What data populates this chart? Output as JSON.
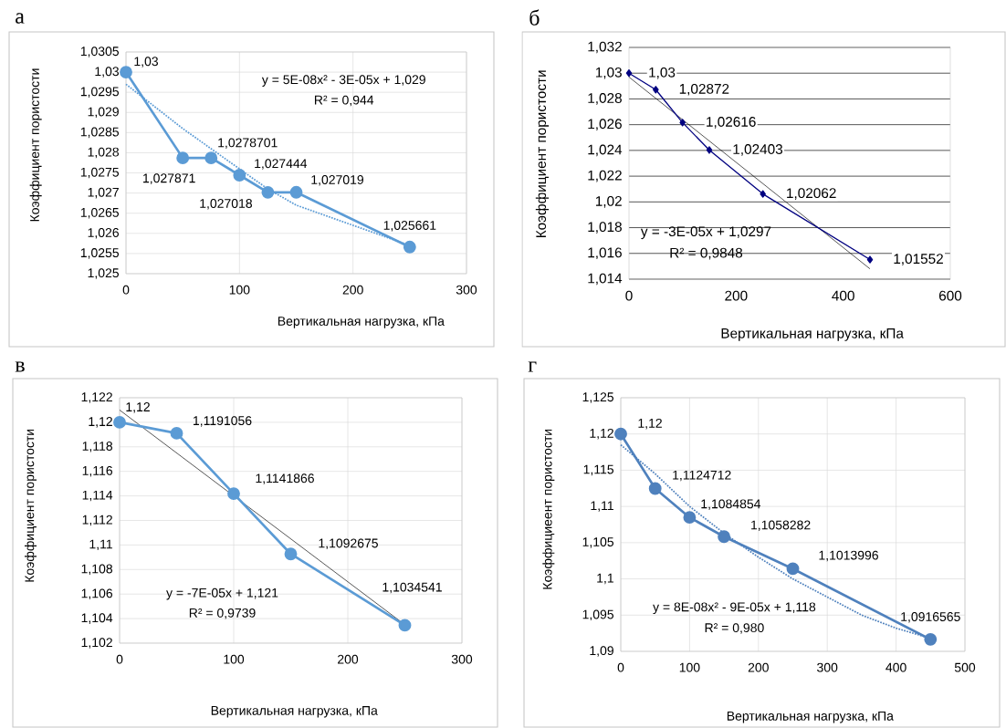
{
  "chart_data": [
    {
      "type": "line",
      "title": "а",
      "xlabel": "Вертикальная нагрузка, кПа",
      "ylabel": "Коэффициент пористости",
      "grid": true,
      "xlim": [
        0,
        300
      ],
      "xticks": [
        0,
        100,
        200,
        300
      ],
      "ylim": [
        1.025,
        1.0305
      ],
      "yticks": [
        {
          "value": 1.025,
          "label": "1,025"
        },
        {
          "value": 1.0255,
          "label": "1,0255"
        },
        {
          "value": 1.026,
          "label": "1,026"
        },
        {
          "value": 1.0265,
          "label": "1,0265"
        },
        {
          "value": 1.027,
          "label": "1,027"
        },
        {
          "value": 1.0275,
          "label": "1,0275"
        },
        {
          "value": 1.028,
          "label": "1,028"
        },
        {
          "value": 1.0285,
          "label": "1,0285"
        },
        {
          "value": 1.029,
          "label": "1,029"
        },
        {
          "value": 1.0295,
          "label": "1,0295"
        },
        {
          "value": 1.03,
          "label": "1,03"
        },
        {
          "value": 1.0305,
          "label": "1,0305"
        }
      ],
      "annotations": [
        "y = 5E-08x² - 3E-05x + 1,029",
        "R² = 0,944"
      ],
      "series": [
        {
          "color": "#5b9bd5",
          "marker": "none",
          "line_style": "dotted",
          "x": [
            0,
            50,
            100,
            125,
            150,
            200,
            250
          ],
          "values": [
            1.0297,
            1.0286,
            1.0276,
            1.0271,
            1.0267,
            1.0262,
            1.0257
          ]
        },
        {
          "color": "#5b9bd5",
          "marker": "circle",
          "line_style": "solid",
          "x": [
            0,
            50,
            75,
            100,
            125,
            150,
            250
          ],
          "values": [
            1.03,
            1.027871,
            1.0278701,
            1.027444,
            1.027018,
            1.027019,
            1.025661
          ],
          "value_labels": [
            "1,03",
            "1,027871",
            "1,0278701",
            "1,027444",
            "1,027018",
            "1,027019",
            "1,025661"
          ]
        }
      ]
    },
    {
      "type": "line",
      "title": "б",
      "xlabel": "Вертикальная нагрузка, кПа",
      "ylabel": "Коэффициент пористости",
      "grid": "y",
      "xlim": [
        0,
        600
      ],
      "xticks": [
        0,
        200,
        400,
        600
      ],
      "ylim": [
        1.014,
        1.032
      ],
      "yticks": [
        {
          "value": 1.014,
          "label": "1,014"
        },
        {
          "value": 1.016,
          "label": "1,016"
        },
        {
          "value": 1.018,
          "label": "1,018"
        },
        {
          "value": 1.02,
          "label": "1,02"
        },
        {
          "value": 1.022,
          "label": "1,022"
        },
        {
          "value": 1.024,
          "label": "1,024"
        },
        {
          "value": 1.026,
          "label": "1,026"
        },
        {
          "value": 1.028,
          "label": "1,028"
        },
        {
          "value": 1.03,
          "label": "1,03"
        },
        {
          "value": 1.032,
          "label": "1,032"
        }
      ],
      "annotations": [
        "y = -3E-05x + 1,0297",
        "R² = 0,9848"
      ],
      "series": [
        {
          "color": "#000000",
          "marker": "none",
          "line_style": "solid",
          "x": [
            0,
            450
          ],
          "values": [
            1.0297,
            1.0148
          ]
        },
        {
          "color": "#000080",
          "marker": "diamond",
          "line_style": "solid",
          "x": [
            0,
            50,
            100,
            150,
            250,
            450
          ],
          "values": [
            1.03,
            1.02872,
            1.02616,
            1.02403,
            1.02062,
            1.01552
          ],
          "value_labels": [
            "1,03",
            "1,02872",
            "1,02616",
            "1,02403",
            "1,02062",
            "1,01552"
          ]
        }
      ]
    },
    {
      "type": "line",
      "title": "в",
      "xlabel": "Вертикальная нагрузка, кПа",
      "ylabel": "Коэффициент пористости",
      "grid": true,
      "xlim": [
        0,
        300
      ],
      "xticks": [
        0,
        100,
        200,
        300
      ],
      "ylim": [
        1.102,
        1.122
      ],
      "yticks": [
        {
          "value": 1.102,
          "label": "1,102"
        },
        {
          "value": 1.104,
          "label": "1,104"
        },
        {
          "value": 1.106,
          "label": "1,106"
        },
        {
          "value": 1.108,
          "label": "1,108"
        },
        {
          "value": 1.11,
          "label": "1,11"
        },
        {
          "value": 1.112,
          "label": "1,112"
        },
        {
          "value": 1.114,
          "label": "1,114"
        },
        {
          "value": 1.116,
          "label": "1,116"
        },
        {
          "value": 1.118,
          "label": "1,118"
        },
        {
          "value": 1.12,
          "label": "1,12"
        },
        {
          "value": 1.122,
          "label": "1,122"
        }
      ],
      "annotations": [
        "y = -7E-05x + 1,121",
        "R² = 0,9739"
      ],
      "series": [
        {
          "color": "#000000",
          "marker": "none",
          "line_style": "solid",
          "x": [
            0,
            250
          ],
          "values": [
            1.121,
            1.1035
          ]
        },
        {
          "color": "#5b9bd5",
          "marker": "circle",
          "line_style": "solid",
          "x": [
            0,
            50,
            100,
            150,
            250
          ],
          "values": [
            1.12,
            1.1191056,
            1.1141866,
            1.1092675,
            1.1034541
          ],
          "value_labels": [
            "1,12",
            "1,1191056",
            "1,1141866",
            "1,1092675",
            "1,1034541"
          ]
        }
      ]
    },
    {
      "type": "line",
      "title": "г",
      "xlabel": "Вертикальная  нагрузка, кПа",
      "ylabel": "Коэффициеент пористости",
      "grid": true,
      "xlim": [
        0,
        500
      ],
      "xticks": [
        0,
        100,
        200,
        300,
        400,
        500
      ],
      "ylim": [
        1.09,
        1.125
      ],
      "yticks": [
        {
          "value": 1.09,
          "label": "1,09"
        },
        {
          "value": 1.095,
          "label": "1,095"
        },
        {
          "value": 1.1,
          "label": "1,1"
        },
        {
          "value": 1.105,
          "label": "1,105"
        },
        {
          "value": 1.11,
          "label": "1,11"
        },
        {
          "value": 1.115,
          "label": "1,115"
        },
        {
          "value": 1.12,
          "label": "1,12"
        },
        {
          "value": 1.125,
          "label": "1,125"
        }
      ],
      "annotations": [
        "y = 8E-08x² - 9E-05x + 1,118",
        "R² = 0,980"
      ],
      "series": [
        {
          "color": "#4f81bd",
          "marker": "none",
          "line_style": "dotted",
          "x": [
            0,
            50,
            100,
            150,
            200,
            250,
            300,
            350,
            400,
            450
          ],
          "values": [
            1.1185,
            1.1145,
            1.11,
            1.1063,
            1.103,
            1.1,
            1.0975,
            1.095,
            1.0932,
            1.0918
          ]
        },
        {
          "color": "#4f81bd",
          "marker": "circle",
          "line_style": "solid",
          "x": [
            0,
            50,
            100,
            150,
            250,
            450
          ],
          "values": [
            1.12,
            1.1124712,
            1.1084854,
            1.1058282,
            1.1013996,
            1.0916565
          ],
          "value_labels": [
            "1,12",
            "1,1124712",
            "1,1084854",
            "1,1058282",
            "1,1013996",
            "1,0916565"
          ]
        }
      ]
    }
  ]
}
